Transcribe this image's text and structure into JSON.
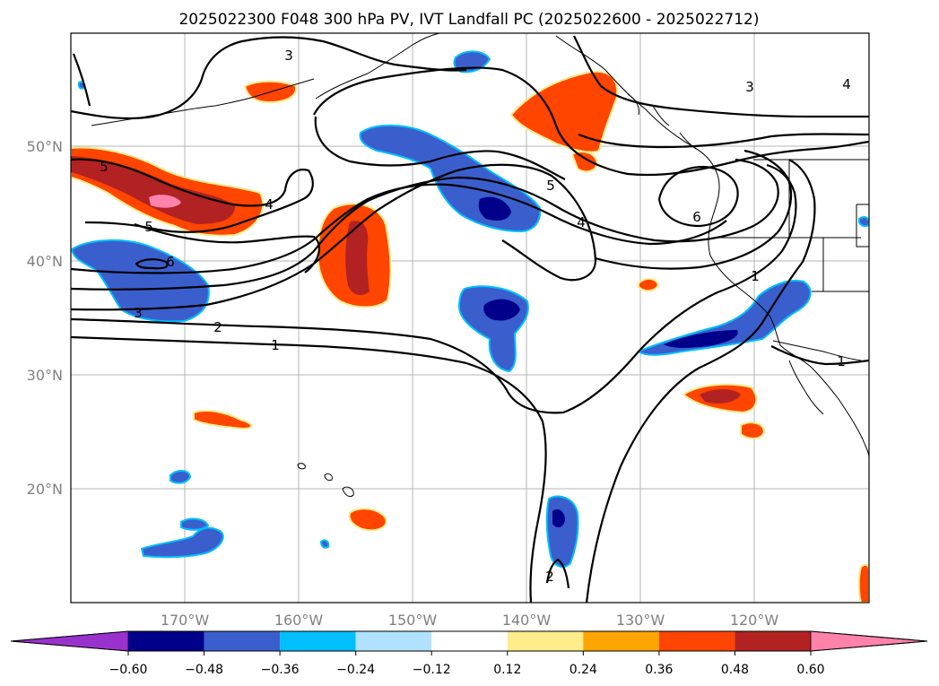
{
  "title": "2025022300 F048 300 hPa PV, IVT Landfall PC (2025022600 - 2025022712)",
  "map": {
    "latitude_labels": [
      "50°N",
      "40°N",
      "30°N",
      "20°N"
    ],
    "longitude_labels": [
      "170°W",
      "160°W",
      "150°W",
      "140°W",
      "130°W",
      "120°W"
    ],
    "contour_labels": [
      "3",
      "3",
      "4",
      "5",
      "5",
      "4",
      "6",
      "5",
      "4",
      "6",
      "3",
      "2",
      "1",
      "1",
      "1",
      "2"
    ]
  },
  "colorbar": {
    "tick_labels": [
      "−0.60",
      "−0.48",
      "−0.36",
      "−0.24",
      "−0.12",
      "0.12",
      "0.24",
      "0.36",
      "0.48",
      "0.60"
    ],
    "colors": [
      "#9932cc",
      "#00008b",
      "#3a5fcd",
      "#00bfff",
      "#b0e2ff",
      "#ffffff",
      "#ffec8b",
      "#ffa500",
      "#ff4500",
      "#b22222",
      "#ff82ab"
    ]
  }
}
